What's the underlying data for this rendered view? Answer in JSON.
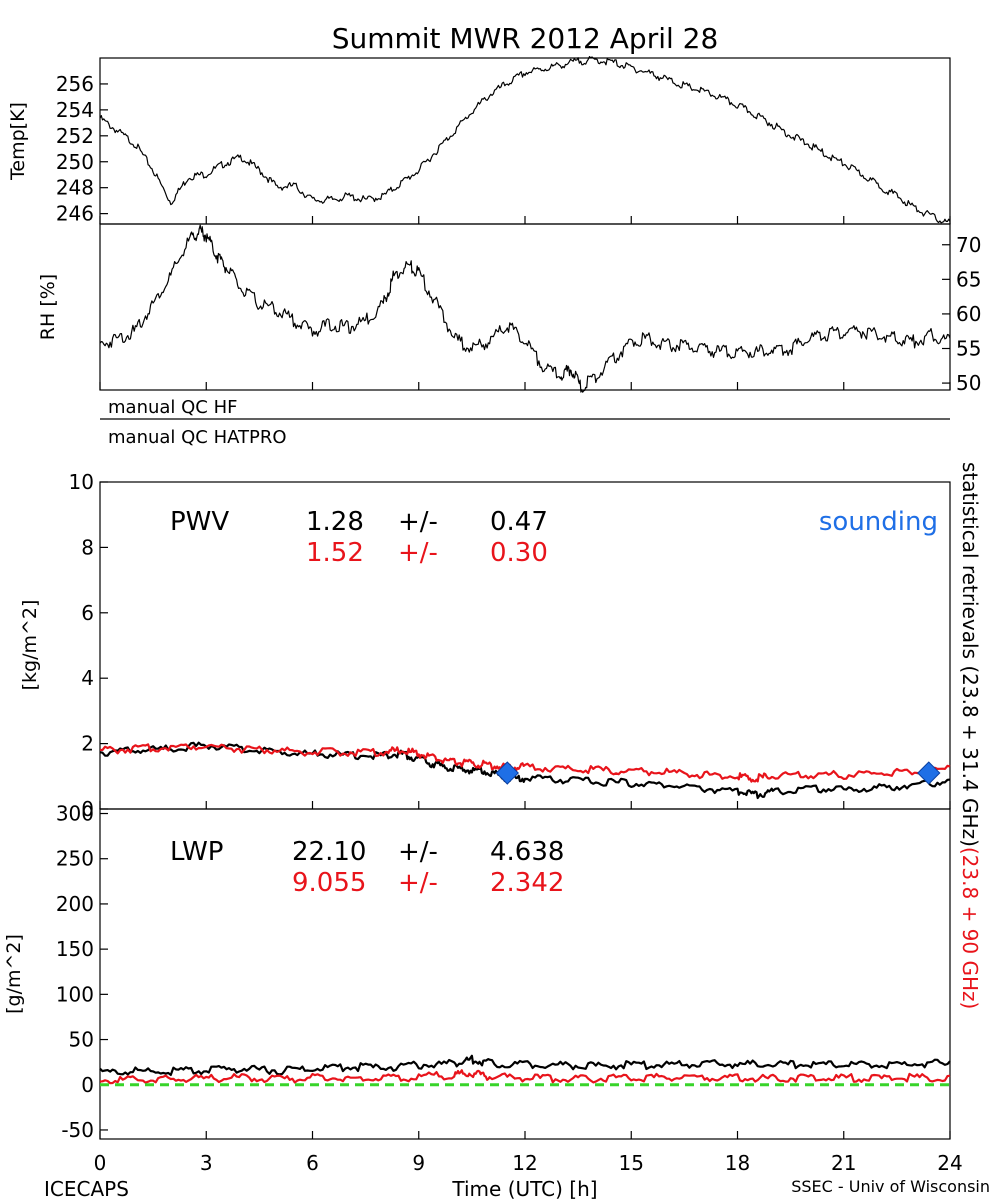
{
  "page": {
    "title": "Summit MWR 2012 April 28",
    "footer_left": "ICECAPS",
    "footer_right": "SSEC - Univ of Wisconsin"
  },
  "qc_labels": [
    "manual QC HF",
    "manual QC HATPRO"
  ],
  "side_label": {
    "black": "statistical retrievals (23.8 + 31.4 GHz)",
    "red": "(23.8 + 90 GHz)"
  },
  "colors": {
    "black": "#000000",
    "red": "#e8141b",
    "blue": "#1f6fe6",
    "green": "#38d42a"
  },
  "chart_data": [
    {
      "type": "line",
      "panel": "temperature",
      "ylabel": "Temp[K]",
      "x_range": [
        0,
        24
      ],
      "ylim": [
        245.2,
        258
      ],
      "yticks": [
        246,
        248,
        250,
        252,
        254,
        256
      ],
      "series": [
        {
          "color": "#000000",
          "x": [
            0,
            0.5,
            1,
            1.5,
            2,
            2.5,
            3,
            3.5,
            4,
            4.5,
            5,
            5.5,
            6,
            6.5,
            7,
            7.5,
            8,
            8.5,
            9,
            9.5,
            10,
            10.5,
            11,
            11.5,
            12,
            12.5,
            13,
            13.5,
            14,
            14.5,
            15,
            15.5,
            16,
            16.5,
            17,
            17.5,
            18,
            18.5,
            19,
            19.5,
            20,
            20.5,
            21,
            21.5,
            22,
            22.5,
            23,
            23.5,
            24
          ],
          "y": [
            253.5,
            252.5,
            251.5,
            249.5,
            247.0,
            249.0,
            249.2,
            250.0,
            250.5,
            249.5,
            248.2,
            248.3,
            247.2,
            247.2,
            247.5,
            247.2,
            247.5,
            248.5,
            249.5,
            251.0,
            252.5,
            254.0,
            255.3,
            256.2,
            257.0,
            257.3,
            257.6,
            257.9,
            258.0,
            257.8,
            257.4,
            257.0,
            256.5,
            256.0,
            255.6,
            255.1,
            254.5,
            253.8,
            253.0,
            252.2,
            251.5,
            250.7,
            250.0,
            249.2,
            248.3,
            247.5,
            246.6,
            245.9,
            245.4
          ]
        }
      ]
    },
    {
      "type": "line",
      "panel": "relative-humidity",
      "ylabel": "RH [%]",
      "x_range": [
        0,
        24
      ],
      "ylim": [
        49,
        73
      ],
      "yticks": [
        50,
        55,
        60,
        65,
        70
      ],
      "series": [
        {
          "color": "#000000",
          "x": [
            0,
            0.5,
            1,
            1.5,
            2,
            2.5,
            2.8,
            3,
            3.3,
            3.6,
            4,
            4.5,
            5,
            5.5,
            6,
            6.5,
            7,
            7.5,
            8,
            8.3,
            8.7,
            9,
            9.5,
            10,
            10.5,
            11,
            11.5,
            12,
            12.5,
            13,
            13.3,
            13.6,
            14,
            14.5,
            15,
            15.5,
            16,
            16.5,
            17,
            17.5,
            18,
            18.5,
            19,
            19.5,
            20,
            20.5,
            21,
            21.5,
            22,
            22.5,
            23,
            23.5,
            24
          ],
          "y": [
            56,
            57,
            58,
            62,
            66,
            71,
            72.5,
            71.8,
            69,
            67,
            64,
            62,
            61,
            59.5,
            58,
            59,
            58.5,
            59.5,
            62,
            66,
            67.5,
            66.5,
            62,
            57,
            55.5,
            56.5,
            59,
            56.5,
            53,
            51.5,
            52.5,
            49.8,
            51.5,
            54,
            56.5,
            57,
            56,
            56,
            55.5,
            55,
            55,
            55,
            55.3,
            55.5,
            57,
            57.5,
            58,
            58,
            57.5,
            57,
            56.5,
            57.5,
            56.5
          ]
        }
      ]
    },
    {
      "type": "line",
      "panel": "pwv",
      "ylabel": "[kg/m^2]",
      "label": "PWV",
      "x_range": [
        0,
        24
      ],
      "ylim": [
        0,
        10
      ],
      "yticks": [
        0,
        2,
        4,
        6,
        8,
        10
      ],
      "stats": [
        {
          "mean": "1.28",
          "sep": "+/-",
          "std": "0.47",
          "color": "#000000"
        },
        {
          "mean": "1.52",
          "sep": "+/-",
          "std": "0.30",
          "color": "#e8141b"
        }
      ],
      "series": [
        {
          "color": "#000000",
          "x": [
            0,
            1,
            2,
            3,
            4,
            5,
            6,
            7,
            8,
            8.5,
            9,
            9.5,
            10,
            10.5,
            11,
            11.5,
            12,
            13,
            14,
            15,
            16,
            17,
            18,
            18.5,
            19,
            20,
            21,
            22,
            23,
            24
          ],
          "y": [
            1.8,
            1.85,
            1.9,
            2.0,
            1.9,
            1.8,
            1.75,
            1.7,
            1.7,
            1.75,
            1.6,
            1.4,
            1.3,
            1.25,
            1.2,
            1.0,
            1.0,
            0.95,
            0.9,
            0.85,
            0.8,
            0.7,
            0.6,
            0.5,
            0.6,
            0.7,
            0.65,
            0.7,
            0.8,
            0.9
          ]
        },
        {
          "color": "#e8141b",
          "x": [
            0,
            1,
            2,
            3,
            4,
            5,
            6,
            7,
            8,
            8.5,
            9,
            9.5,
            10,
            10.5,
            11,
            11.5,
            12,
            13,
            14,
            15,
            16,
            17,
            18,
            18.5,
            19,
            20,
            21,
            22,
            23,
            24
          ],
          "y": [
            1.85,
            1.9,
            1.95,
            2.0,
            1.9,
            1.85,
            1.8,
            1.8,
            1.8,
            1.85,
            1.75,
            1.6,
            1.5,
            1.45,
            1.4,
            1.35,
            1.35,
            1.3,
            1.25,
            1.2,
            1.2,
            1.1,
            1.05,
            1.0,
            1.05,
            1.1,
            1.1,
            1.15,
            1.2,
            1.3
          ]
        }
      ],
      "sounding": {
        "label": "sounding",
        "color": "#1f6fe6",
        "x": [
          11.5,
          23.4
        ],
        "y": [
          1.1,
          1.1
        ]
      }
    },
    {
      "type": "line",
      "panel": "lwp",
      "ylabel": "[g/m^2]",
      "xlabel": "Time (UTC) [h]",
      "label": "LWP",
      "x_range": [
        0,
        24
      ],
      "xticks": [
        0,
        3,
        6,
        9,
        12,
        15,
        18,
        21,
        24
      ],
      "ylim": [
        -60,
        305
      ],
      "yticks": [
        -50,
        0,
        50,
        100,
        150,
        200,
        250,
        300
      ],
      "stats": [
        {
          "mean": "22.10",
          "sep": "+/-",
          "std": "4.638",
          "color": "#000000"
        },
        {
          "mean": "9.055",
          "sep": "+/-",
          "std": "2.342",
          "color": "#e8141b"
        }
      ],
      "series": [
        {
          "color": "#000000",
          "x": [
            0,
            1,
            2,
            3,
            4,
            5,
            6,
            7,
            8,
            9,
            10,
            10.5,
            11,
            12,
            13,
            14,
            15,
            16,
            17,
            18,
            19,
            20,
            21,
            22,
            23,
            24
          ],
          "y": [
            16,
            17,
            17,
            18,
            20,
            18,
            20,
            22,
            21,
            24,
            26,
            30,
            26,
            25,
            24,
            23,
            24,
            24,
            25,
            25,
            24,
            25,
            24,
            24,
            25,
            26
          ]
        },
        {
          "color": "#e8141b",
          "x": [
            0,
            1,
            2,
            3,
            4,
            5,
            6,
            7,
            8,
            9,
            10,
            10.5,
            11,
            12,
            13,
            14,
            15,
            16,
            17,
            18,
            19,
            20,
            21,
            22,
            23,
            24
          ],
          "y": [
            7,
            8,
            8,
            9,
            10,
            8,
            10,
            10,
            9,
            11,
            13,
            15,
            11,
            10,
            9,
            9,
            10,
            10,
            10,
            10,
            9,
            10,
            10,
            9,
            10,
            10
          ]
        },
        {
          "color": "#38d42a",
          "style": "dashed",
          "x": [
            0,
            24
          ],
          "y": [
            0,
            0
          ]
        }
      ]
    }
  ]
}
